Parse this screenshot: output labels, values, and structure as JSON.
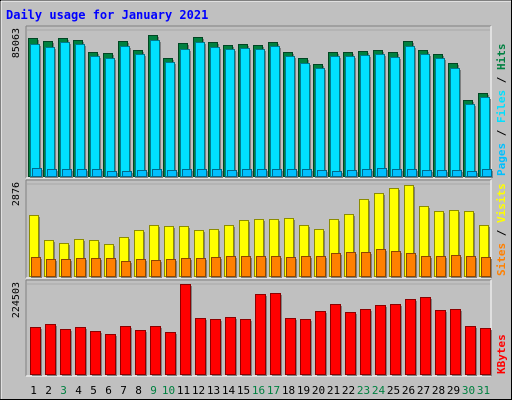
{
  "colors": {
    "background": "#c0c0c0",
    "title": "#0000ff",
    "hits": "#008040",
    "files": "#00e0ff",
    "pages": "#00c0ff",
    "visits": "#ffff00",
    "sites": "#ff8000",
    "kbytes": "#ff0000",
    "weekend_day": "#008040",
    "weekday_day": "#000000"
  },
  "chart_data": {
    "type": "bar",
    "title": "Daily usage for January 2021",
    "categories": [
      "1",
      "2",
      "3",
      "4",
      "5",
      "6",
      "7",
      "8",
      "9",
      "10",
      "11",
      "12",
      "13",
      "14",
      "15",
      "16",
      "17",
      "18",
      "19",
      "20",
      "21",
      "22",
      "23",
      "24",
      "25",
      "26",
      "27",
      "28",
      "29",
      "30",
      "31"
    ],
    "weekend_days": [
      "3",
      "9",
      "10",
      "16",
      "17",
      "23",
      "24",
      "30",
      "31"
    ],
    "panels": [
      {
        "id": "hits-files-pages",
        "ymax_label": "85063",
        "ymax": 85063,
        "legend": [
          {
            "text": "Pages",
            "color": "#00c0ff"
          },
          {
            "text": "Files",
            "color": "#00e0ff"
          },
          {
            "text": "Hits",
            "color": "#008040"
          }
        ],
        "series": [
          {
            "name": "Hits",
            "color": "#008040",
            "values": [
              80500,
              78500,
              80500,
              79500,
              72500,
              71500,
              78500,
              73500,
              82000,
              69000,
              77500,
              81000,
              78000,
              76500,
              77000,
              76500,
              78000,
              72500,
              68500,
              65000,
              72000,
              72500,
              73000,
              73500,
              72000,
              78500,
              73500,
              71000,
              66000,
              44500,
              48500
            ]
          },
          {
            "name": "Files",
            "color": "#00e0ff",
            "values": [
              77000,
              75000,
              78000,
              77000,
              70000,
              69000,
              76000,
              71000,
              79000,
              66500,
              74000,
              78000,
              75000,
              74000,
              74500,
              74000,
              75500,
              70000,
              66000,
              63000,
              70000,
              70000,
              70500,
              71000,
              69500,
              76000,
              71000,
              69000,
              63000,
              42000,
              46000
            ]
          },
          {
            "name": "Pages",
            "color": "#00c0ff",
            "values": [
              4500,
              3800,
              4000,
              3900,
              4000,
              3200,
              3000,
              3600,
              4100,
              3600,
              4300,
              4000,
              4100,
              3500,
              3900,
              3900,
              4100,
              3900,
              3900,
              3300,
              3200,
              3400,
              4100,
              4400,
              4200,
              4200,
              3600,
              3400,
              3600,
              3000,
              3900
            ]
          }
        ]
      },
      {
        "id": "visits-sites",
        "ymax_label": "2876",
        "ymax": 2876,
        "legend": [
          {
            "text": "Sites",
            "color": "#ff8000"
          },
          {
            "text": "Visits",
            "color": "#ffff00"
          }
        ],
        "series": [
          {
            "name": "Visits",
            "color": "#ffff00",
            "values": [
              1915,
              1125,
              1040,
              1160,
              1140,
              990,
              1205,
              1445,
              1605,
              1570,
              1560,
              1425,
              1480,
              1605,
              1760,
              1790,
              1785,
              1815,
              1595,
              1470,
              1770,
              1935,
              2400,
              2610,
              2760,
              2850,
              2180,
              2045,
              2070,
              2035,
              1590
            ]
          },
          {
            "name": "Sites",
            "color": "#ff8000",
            "values": [
              600,
              535,
              530,
              550,
              560,
              550,
              460,
              520,
              510,
              540,
              570,
              560,
              580,
              620,
              610,
              620,
              620,
              600,
              620,
              620,
              710,
              740,
              760,
              840,
              790,
              720,
              610,
              630,
              650,
              630,
              600
            ]
          }
        ]
      },
      {
        "id": "kbytes",
        "ymax_label": "224503",
        "ymax": 224503,
        "legend": [
          {
            "text": "KBytes",
            "color": "#ff0000"
          }
        ],
        "series": [
          {
            "name": "KBytes",
            "color": "#ff0000",
            "values": [
              116500,
              124500,
              112500,
              117000,
              107000,
              100000,
              118500,
              109000,
              118500,
              104000,
              224503,
              140000,
              137500,
              142000,
              137500,
              200000,
              201000,
              140000,
              137000,
              157500,
              175000,
              155500,
              161500,
              171000,
              175500,
              186000,
              191500,
              160000,
              162000,
              119500,
              115500
            ]
          }
        ]
      }
    ]
  }
}
